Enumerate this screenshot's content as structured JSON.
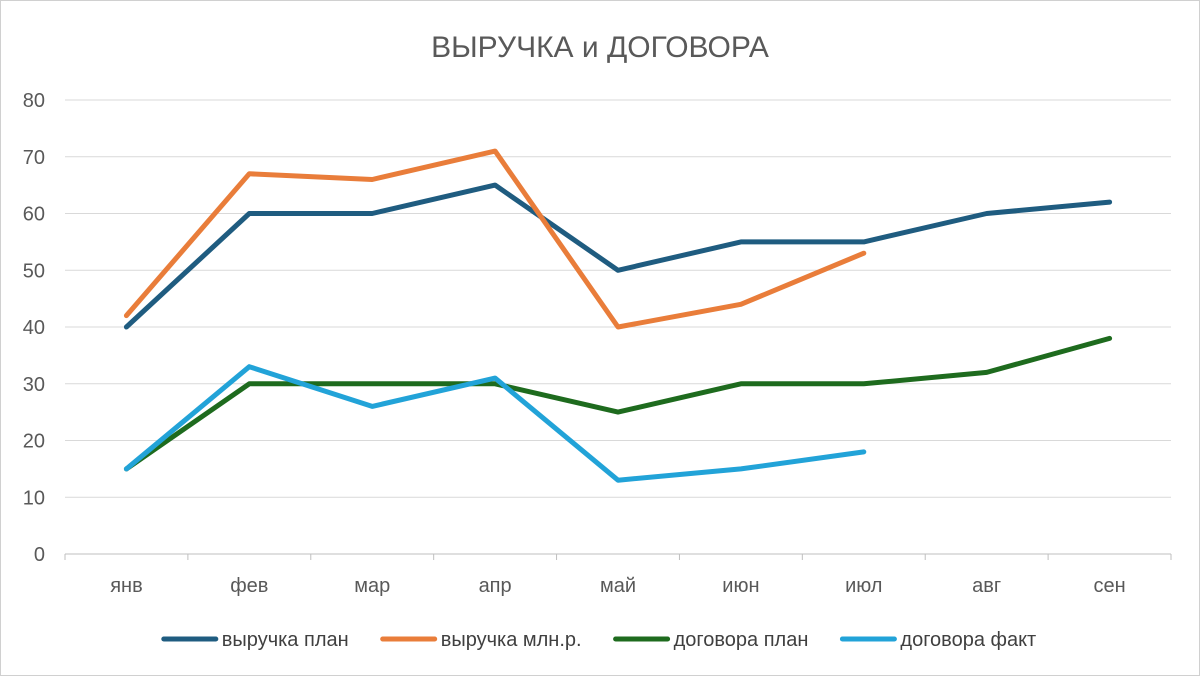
{
  "chart_data": {
    "type": "line",
    "title": "ВЫРУЧКА и ДОГОВОРА",
    "categories": [
      "янв",
      "фев",
      "мар",
      "апр",
      "май",
      "июн",
      "июл",
      "авг",
      "сен"
    ],
    "ylim": [
      0,
      80
    ],
    "yticks": [
      0,
      10,
      20,
      30,
      40,
      50,
      60,
      70,
      80
    ],
    "grid": true,
    "legend_position": "bottom",
    "series": [
      {
        "name": "выручка план",
        "color": "#1f5c80",
        "values": [
          40,
          60,
          60,
          65,
          50,
          55,
          55,
          60,
          62
        ]
      },
      {
        "name": "выручка млн.р.",
        "color": "#e97d3a",
        "values": [
          42,
          67,
          66,
          71,
          40,
          44,
          53,
          null,
          null
        ]
      },
      {
        "name": "договора план",
        "color": "#1e6b1e",
        "values": [
          15,
          30,
          30,
          30,
          25,
          30,
          30,
          32,
          38
        ]
      },
      {
        "name": "договора факт",
        "color": "#22a3d8",
        "values": [
          15,
          33,
          26,
          31,
          13,
          15,
          18,
          null,
          null
        ]
      }
    ]
  }
}
